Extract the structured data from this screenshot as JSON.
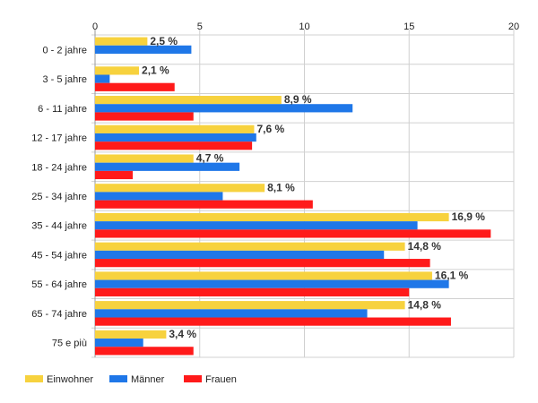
{
  "chart_data": {
    "type": "bar",
    "orientation": "horizontal",
    "categories": [
      "0 - 2 jahre",
      "3 - 5 jahre",
      "6 - 11 jahre",
      "12 - 17 jahre",
      "18 - 24 jahre",
      "25 - 34 jahre",
      "35 - 44 jahre",
      "45 - 54 jahre",
      "55 - 64 jahre",
      "65 - 74 jahre",
      "75 e più"
    ],
    "series": [
      {
        "name": "Einwohner",
        "color": "#f7d23e",
        "values": [
          2.5,
          2.1,
          8.9,
          7.6,
          4.7,
          8.1,
          16.9,
          14.8,
          16.1,
          14.8,
          3.4
        ]
      },
      {
        "name": "Männer",
        "color": "#1f77e8",
        "values": [
          4.6,
          0.7,
          12.3,
          7.7,
          6.9,
          6.1,
          15.4,
          13.8,
          16.9,
          13.0,
          2.3
        ]
      },
      {
        "name": "Frauen",
        "color": "#ff1a1a",
        "values": [
          0,
          3.8,
          4.7,
          7.5,
          1.8,
          10.4,
          18.9,
          16.0,
          15.0,
          17.0,
          4.7
        ]
      }
    ],
    "data_labels": [
      "2,5 %",
      "2,1 %",
      "8,9 %",
      "7,6 %",
      "4,7 %",
      "8,1 %",
      "16,9 %",
      "14,8 %",
      "16,1 %",
      "14,8 %",
      "3,4 %"
    ],
    "xlim": [
      0,
      20
    ],
    "x_ticks": [
      "0",
      "5",
      "10",
      "15",
      "20"
    ],
    "grid": true,
    "legend_position": "bottom-left"
  }
}
